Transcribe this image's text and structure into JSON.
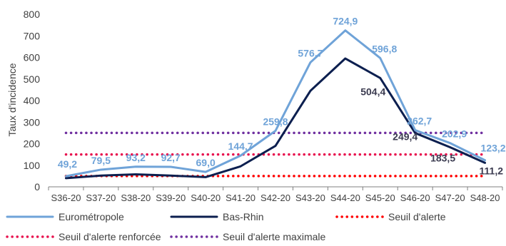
{
  "chart_data": {
    "type": "line",
    "title": "",
    "xlabel": "",
    "ylabel": "Taux d'incidence",
    "ylim": [
      0,
      800
    ],
    "yticks": [
      "0",
      "100",
      "200",
      "300",
      "400",
      "500",
      "600",
      "700",
      "800"
    ],
    "categories": [
      "S36-20",
      "S37-20",
      "S38-20",
      "S39-20",
      "S40-20",
      "S41-20",
      "S42-20",
      "S43-20",
      "S44-20",
      "S45-20",
      "S46-20",
      "S47-20",
      "S48-20"
    ],
    "grid": false,
    "legend_position": "bottom",
    "series": [
      {
        "name": "Eurométropole",
        "color": "#6fa3d8",
        "values": [
          49.2,
          79.5,
          93.2,
          92.7,
          69.0,
          144.7,
          259.8,
          576.7,
          724.9,
          596.8,
          262.7,
          202.9,
          123.2
        ],
        "labels": [
          "49,2",
          "79,5",
          "93,2",
          "92,7",
          "69,0",
          "144,7",
          "259,8",
          "576,7",
          "724,9",
          "596,8",
          "262,7",
          "202,9",
          "123,2"
        ]
      },
      {
        "name": "Bas-Rhin",
        "color": "#0c1f4f",
        "values": [
          40,
          52,
          58,
          52,
          45,
          95,
          190,
          445,
          595,
          504.4,
          249.4,
          183.5,
          111.2
        ],
        "labels": [
          "",
          "",
          "",
          "",
          "",
          "",
          "",
          "",
          "",
          "504,4",
          "249,4",
          "183,5",
          "111,2"
        ]
      },
      {
        "name": "Seuil d'alerte",
        "color": "#ff0000",
        "style": "dotted",
        "values": [
          50,
          50,
          50,
          50,
          50,
          50,
          50,
          50,
          50,
          50,
          50,
          50,
          50
        ]
      },
      {
        "name": "Seuil d'alerte renforcée",
        "color": "#e8134f",
        "style": "dotted",
        "values": [
          150,
          150,
          150,
          150,
          150,
          150,
          150,
          150,
          150,
          150,
          150,
          150,
          150
        ]
      },
      {
        "name": "Seuil d'alerte maximale",
        "color": "#7030a0",
        "style": "dotted",
        "values": [
          250,
          250,
          250,
          250,
          250,
          250,
          250,
          250,
          250,
          250,
          250,
          250,
          250
        ]
      }
    ]
  }
}
